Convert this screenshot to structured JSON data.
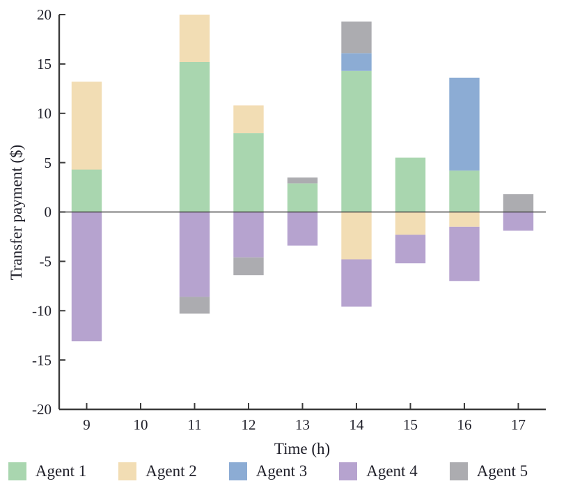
{
  "chart_data": {
    "type": "bar",
    "stacked": true,
    "title": "",
    "xlabel": "Time (h)",
    "ylabel": "Transfer payment ($)",
    "categories": [
      "9",
      "10",
      "11",
      "12",
      "13",
      "14",
      "15",
      "16",
      "17"
    ],
    "series": [
      {
        "name": "Agent 1",
        "color": "#a9d6af",
        "values": [
          4.3,
          0,
          15.2,
          8.0,
          2.9,
          14.3,
          5.5,
          4.2,
          0
        ]
      },
      {
        "name": "Agent 2",
        "color": "#f2ddb4",
        "values": [
          8.9,
          0,
          4.8,
          2.8,
          0,
          -4.8,
          -2.3,
          -1.5,
          0
        ]
      },
      {
        "name": "Agent 3",
        "color": "#8cacd4",
        "values": [
          0,
          0,
          0,
          0,
          0,
          1.8,
          0,
          9.4,
          0
        ]
      },
      {
        "name": "Agent 4",
        "color": "#b6a3cf",
        "values": [
          -13.1,
          0,
          -8.6,
          -4.6,
          -3.4,
          -4.8,
          -2.9,
          -5.5,
          -1.9
        ]
      },
      {
        "name": "Agent 5",
        "color": "#acacb0",
        "values": [
          0,
          0,
          -1.7,
          -1.8,
          0.6,
          3.2,
          0,
          0,
          1.8
        ]
      }
    ],
    "ylim": [
      -20,
      20
    ],
    "yticks": [
      -20,
      -15,
      -10,
      -5,
      0,
      5,
      10,
      15,
      20
    ],
    "grid": false,
    "zero_line": true,
    "legend_position": "bottom",
    "axis_color": "#3b3b3b",
    "zero_line_color": "#444444",
    "text_color": "#20202a"
  }
}
